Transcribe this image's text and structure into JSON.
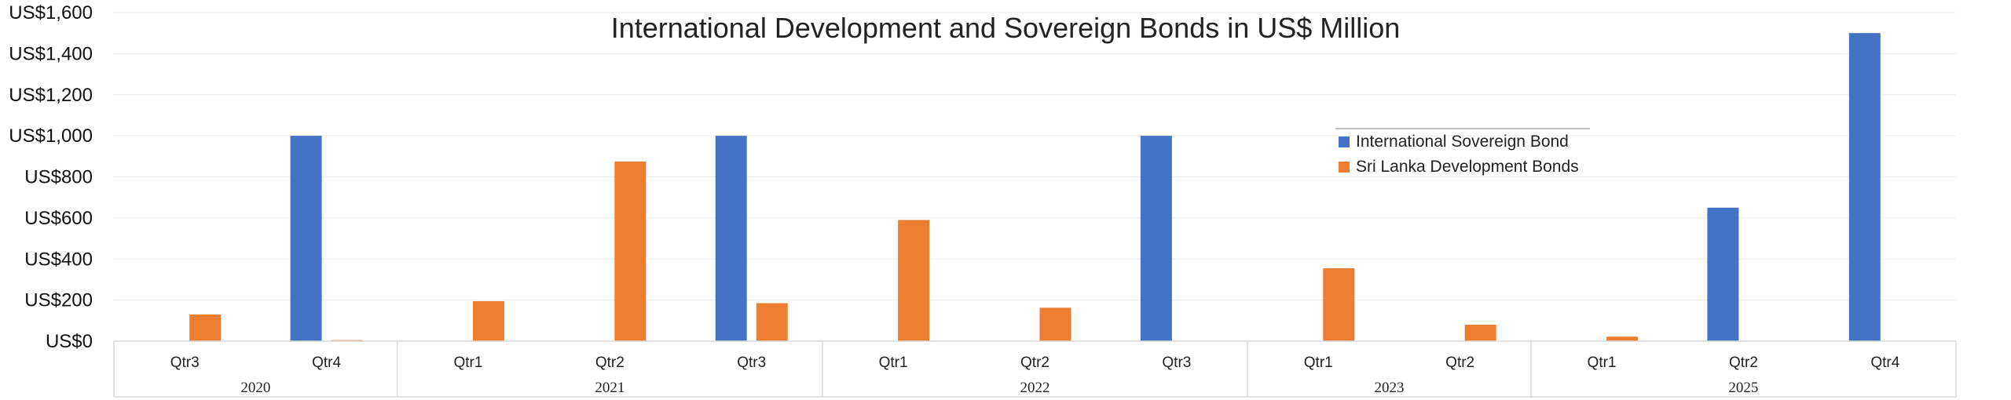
{
  "chart_data": {
    "type": "bar",
    "title": "International Development and Sovereign Bonds in US$ Million",
    "xlabel": "",
    "ylabel": "",
    "ylim": [
      0,
      1600
    ],
    "yticks": [
      "US$0",
      "US$200",
      "US$400",
      "US$600",
      "US$800",
      "US$1,000",
      "US$1,200",
      "US$1,400",
      "US$1,600"
    ],
    "ytick_values": [
      0,
      200,
      400,
      600,
      800,
      1000,
      1200,
      1400,
      1600
    ],
    "grid": true,
    "legend_placement": "right",
    "categories": [
      "Qtr3",
      "Qtr4",
      "Qtr1",
      "Qtr2",
      "Qtr3",
      "Qtr1",
      "Qtr2",
      "Qtr3",
      "Qtr1",
      "Qtr2",
      "Qtr1",
      "Qtr2",
      "Qtr4"
    ],
    "groups": [
      {
        "label": "2020",
        "count": 2
      },
      {
        "label": "2021",
        "count": 3
      },
      {
        "label": "2022",
        "count": 3
      },
      {
        "label": "2023",
        "count": 2
      },
      {
        "label": "2025",
        "count": 3
      }
    ],
    "series": [
      {
        "name": "International Sovereign Bond",
        "color": "#4472C4",
        "values": [
          0,
          1000,
          0,
          0,
          1000,
          0,
          0,
          1000,
          0,
          0,
          0,
          650,
          1500
        ]
      },
      {
        "name": "Sri Lanka Development Bonds",
        "color": "#ED7D31",
        "values": [
          130,
          5,
          195,
          875,
          185,
          590,
          163,
          0,
          355,
          80,
          22,
          0,
          0
        ]
      }
    ]
  }
}
